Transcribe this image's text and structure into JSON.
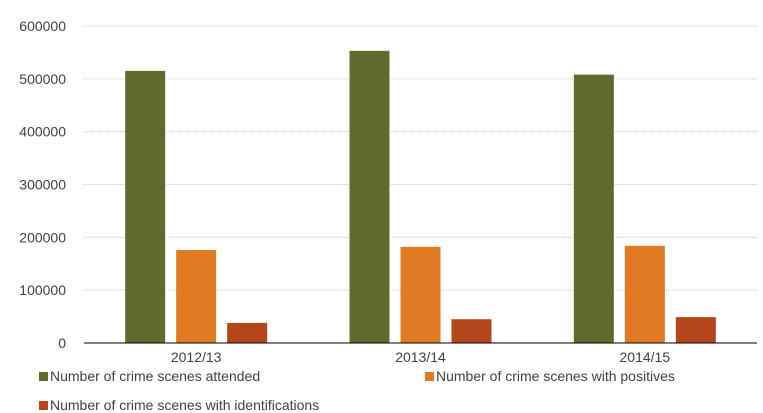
{
  "chart_data": {
    "type": "bar",
    "categories": [
      "2012/13",
      "2013/14",
      "2014/15"
    ],
    "series": [
      {
        "name": "Number of crime scenes attended",
        "color": "#5f6b2d",
        "values": [
          515000,
          553000,
          508000
        ]
      },
      {
        "name": "Number of crime scenes with positives",
        "color": "#e07b24",
        "values": [
          176000,
          182000,
          184000
        ]
      },
      {
        "name": "Number of crime scenes with identifications",
        "color": "#b5461b",
        "values": [
          38000,
          45000,
          49000
        ]
      }
    ],
    "ylim": [
      0,
      600000
    ],
    "yticks": [
      "0",
      "100000",
      "200000",
      "300000",
      "400000",
      "500000",
      "600000"
    ],
    "grid": true,
    "legend_position": "bottom"
  }
}
